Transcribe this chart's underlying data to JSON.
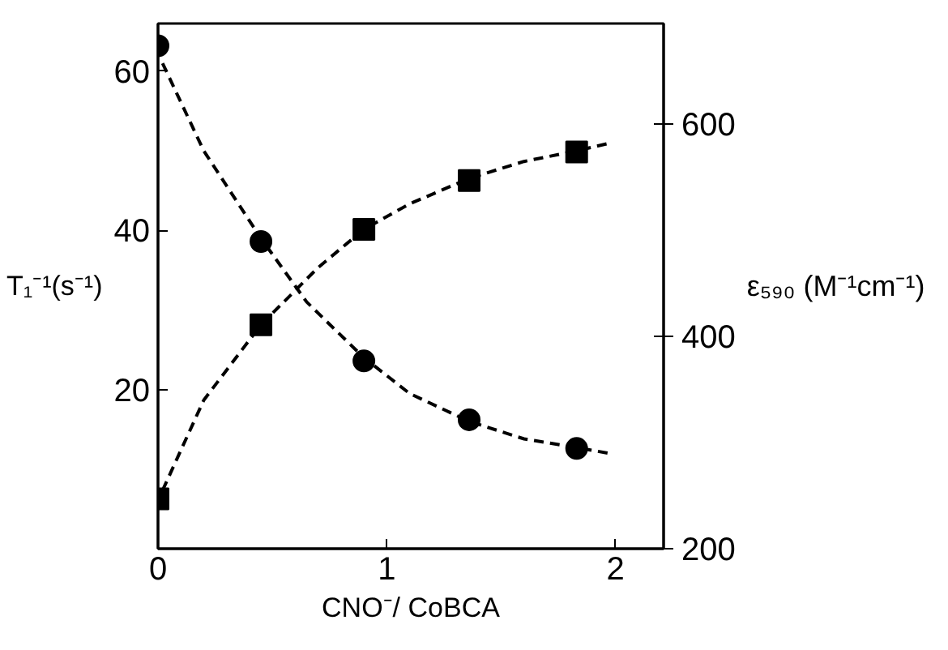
{
  "chart_data": {
    "type": "scatter",
    "xlabel": "CNO⁻/ CoBCA",
    "ylabel": "T₁⁻¹(s⁻¹)",
    "y2label": "ε₅₉₀ (M⁻¹cm⁻¹)",
    "xlim": [
      0,
      2.21
    ],
    "xticks": [
      0,
      1,
      2
    ],
    "ylim": [
      0,
      66
    ],
    "yticks": [
      20,
      40,
      60
    ],
    "y2lim": [
      200,
      695
    ],
    "y2ticks": [
      200,
      400,
      600
    ],
    "grid": false,
    "series": [
      {
        "marker": "circle",
        "color": "#000000",
        "x": [
          0,
          0.45,
          0.9,
          1.36,
          1.83
        ],
        "values": [
          63.2,
          38.6,
          23.6,
          16.2,
          12.6
        ]
      },
      {
        "marker": "square",
        "color": "#000000",
        "axis": "y2",
        "x": [
          0,
          0.45,
          0.9,
          1.36,
          1.83
        ],
        "values": [
          247,
          411,
          501,
          547,
          574
        ]
      },
      {
        "type": "line",
        "line_style": "dashed",
        "color": "#000000",
        "x": [
          0.02,
          0.2,
          0.45,
          0.65,
          0.9,
          1.1,
          1.36,
          1.6,
          1.83,
          1.97
        ],
        "values": [
          61,
          50,
          39,
          31,
          24,
          19.5,
          16,
          13.8,
          12.7,
          12
        ]
      },
      {
        "type": "line",
        "line_style": "dashed",
        "color": "#000000",
        "axis": "y2",
        "x": [
          0.02,
          0.2,
          0.45,
          0.7,
          0.9,
          1.1,
          1.36,
          1.6,
          1.83,
          1.97
        ],
        "values": [
          255,
          340,
          411,
          465,
          501,
          525,
          549,
          565,
          575,
          582
        ]
      }
    ]
  }
}
